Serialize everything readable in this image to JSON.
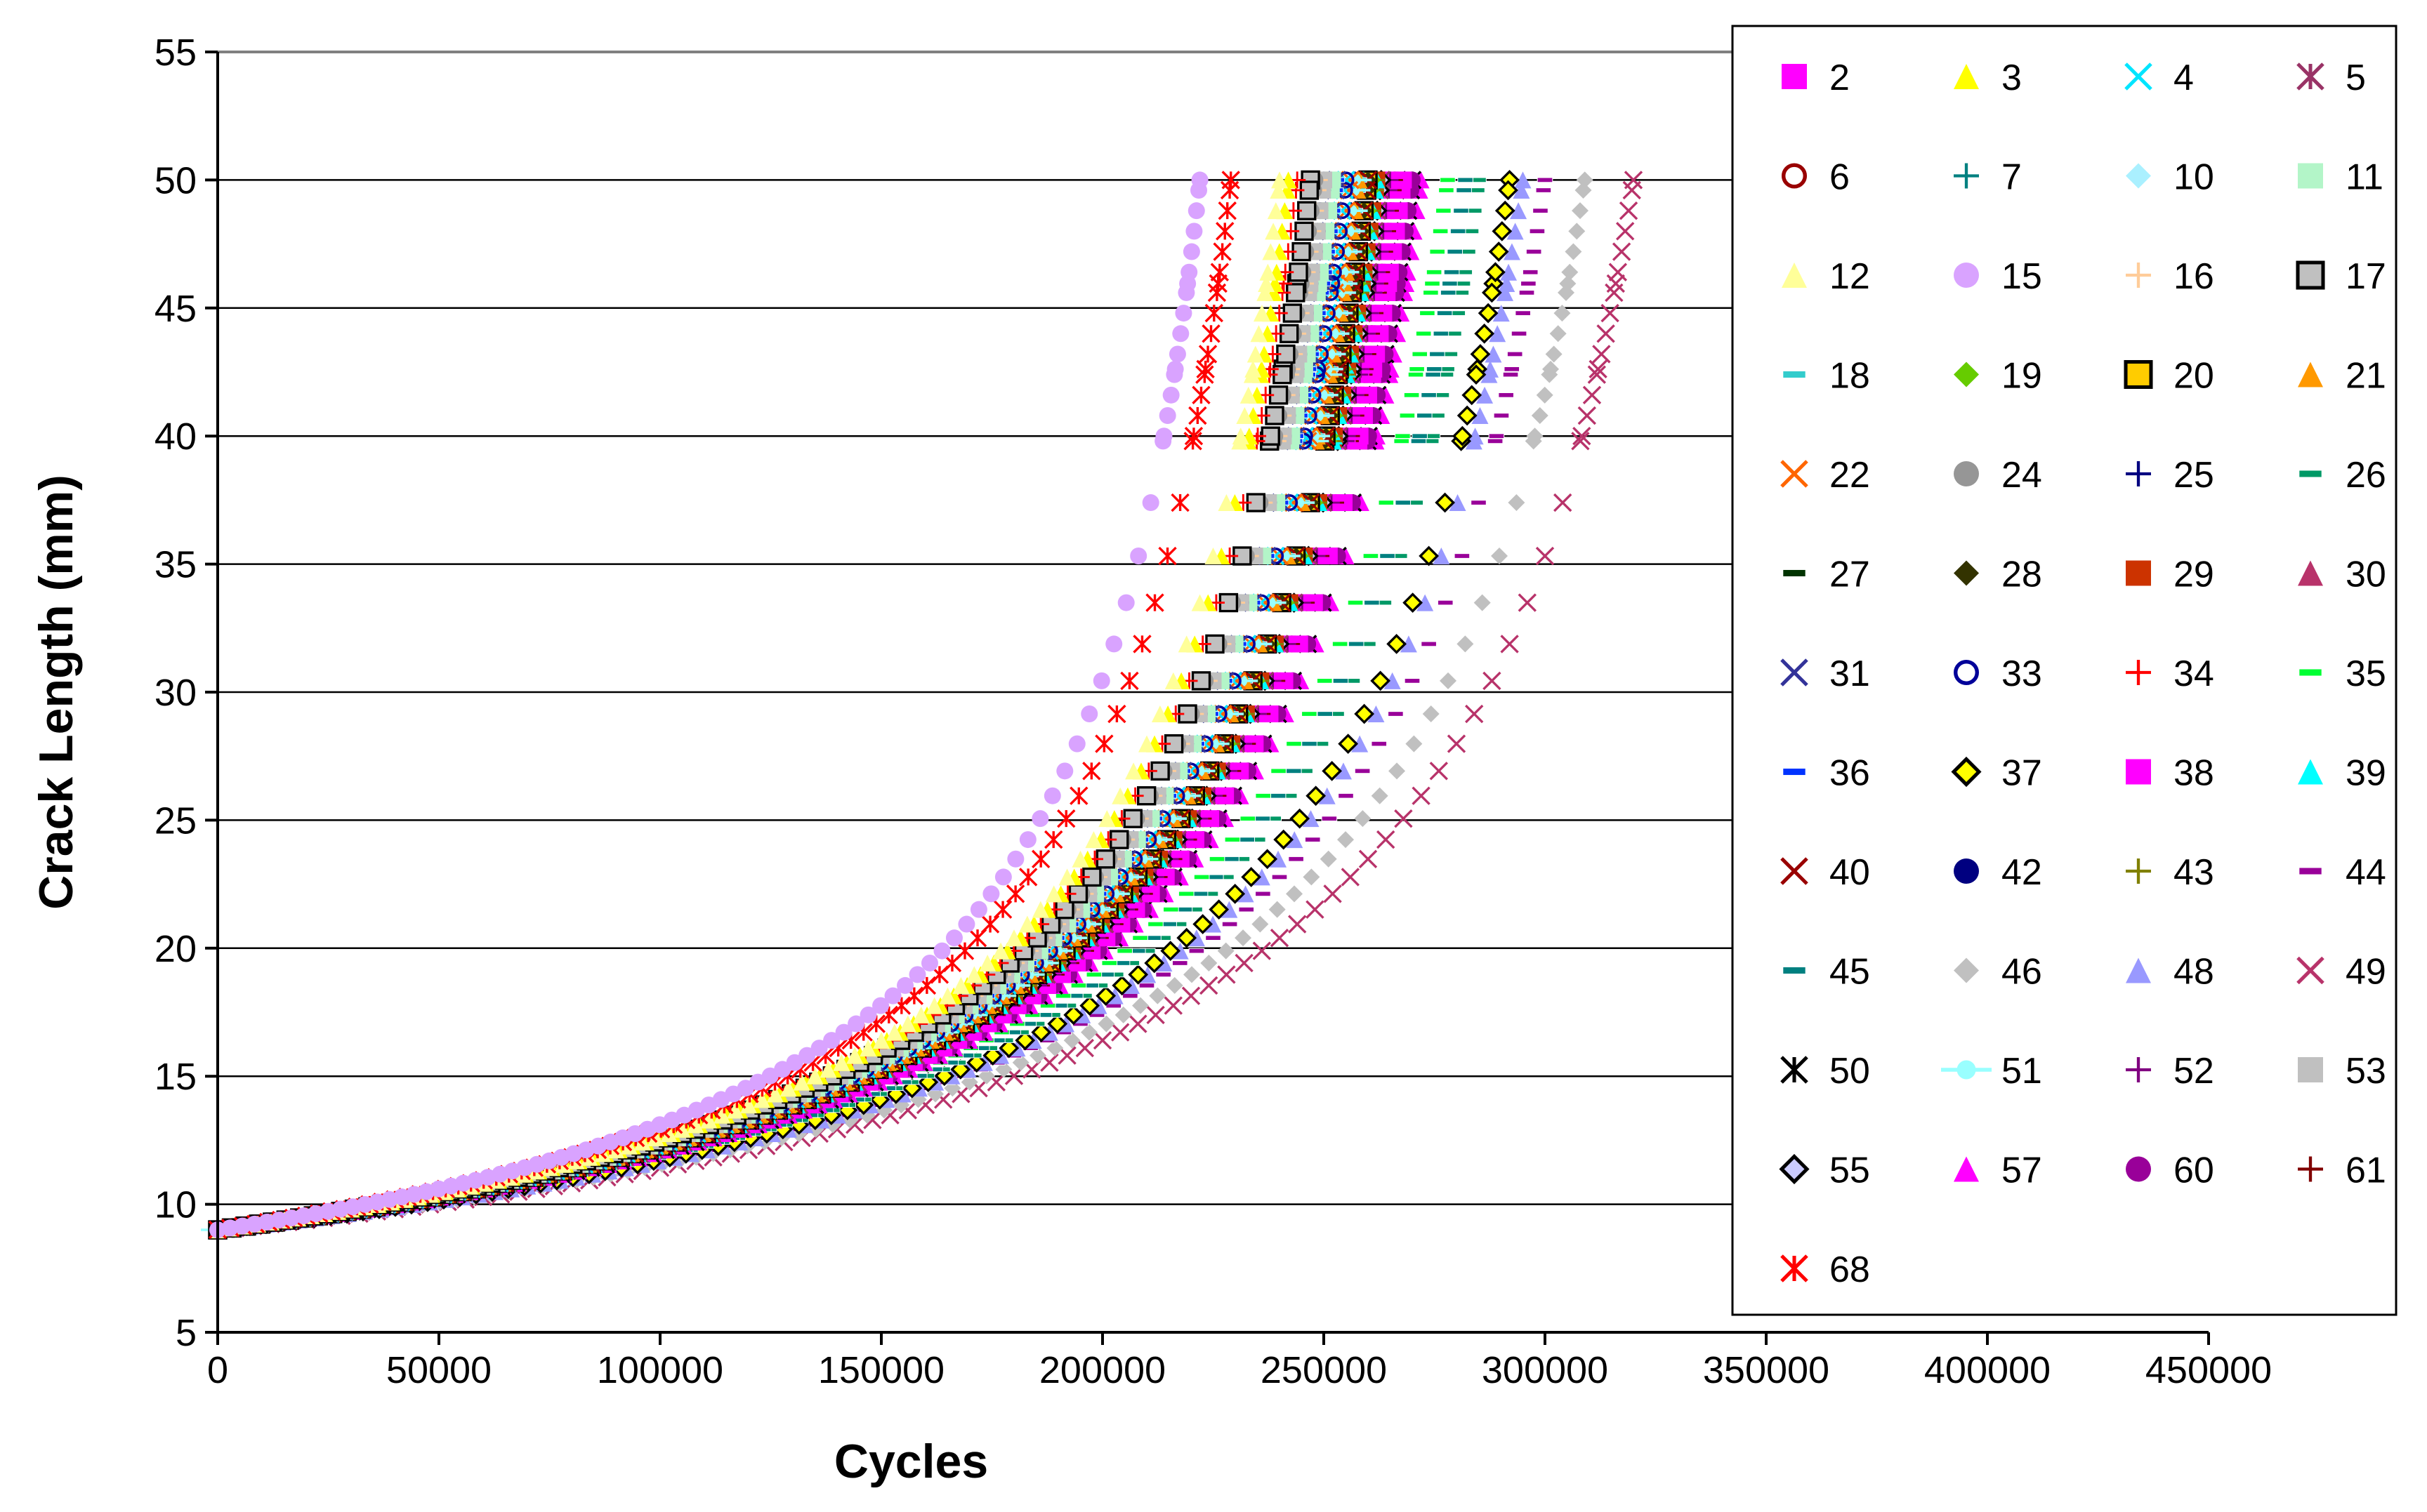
{
  "chart_data": {
    "type": "scatter",
    "title": "",
    "xlabel": "Cycles",
    "ylabel": "Crack Length (mm)",
    "xlim": [
      0,
      450000
    ],
    "ylim": [
      5,
      55
    ],
    "x_ticks": [
      0,
      50000,
      100000,
      150000,
      200000,
      250000,
      300000,
      350000,
      400000,
      450000
    ],
    "y_ticks": [
      5,
      10,
      15,
      20,
      25,
      30,
      35,
      40,
      45,
      50,
      55
    ],
    "grid": "horizontal",
    "legend_placement": "right",
    "series": [
      {
        "name": "2",
        "marker": "square",
        "color": "#ff00ff",
        "a_end": 50,
        "n_end": 265000
      },
      {
        "name": "3",
        "marker": "triangle",
        "color": "#ffff00",
        "a_end": 50,
        "n_end": 242000
      },
      {
        "name": "4",
        "marker": "x",
        "color": "#00e5ff",
        "a_end": 50,
        "n_end": 255000
      },
      {
        "name": "5",
        "marker": "star",
        "color": "#993366",
        "a_end": 50,
        "n_end": 263000
      },
      {
        "name": "6",
        "marker": "circle-open",
        "color": "#990000",
        "a_end": 50,
        "n_end": 258000
      },
      {
        "name": "7",
        "marker": "plus",
        "color": "#008080",
        "a_end": 50,
        "n_end": 259000
      },
      {
        "name": "10",
        "marker": "diamond",
        "color": "#aaf0ff",
        "a_end": 50,
        "n_end": 250000
      },
      {
        "name": "11",
        "marker": "square",
        "color": "#b3f5c8",
        "a_end": 50,
        "n_end": 252000
      },
      {
        "name": "12",
        "marker": "triangle",
        "color": "#ffff99",
        "a_end": 50,
        "n_end": 240000
      },
      {
        "name": "15",
        "marker": "circle",
        "color": "#d9a3ff",
        "a_end": 50,
        "n_end": 222000
      },
      {
        "name": "16",
        "marker": "plus",
        "color": "#ffcc99",
        "a_end": 50,
        "n_end": 249000
      },
      {
        "name": "17",
        "marker": "square-open-black",
        "color": "#c0c0c0",
        "a_end": 50,
        "n_end": 247000
      },
      {
        "name": "18",
        "marker": "dash",
        "color": "#33cccc",
        "a_end": 50,
        "n_end": 258000
      },
      {
        "name": "19",
        "marker": "diamond",
        "color": "#66cc00",
        "a_end": 50,
        "n_end": 261000
      },
      {
        "name": "20",
        "marker": "square-open-black",
        "color": "#ffcc00",
        "a_end": 50,
        "n_end": 260000
      },
      {
        "name": "21",
        "marker": "triangle",
        "color": "#ff9900",
        "a_end": 50,
        "n_end": 258000
      },
      {
        "name": "22",
        "marker": "x",
        "color": "#ff6600",
        "a_end": 50,
        "n_end": 256000
      },
      {
        "name": "24",
        "marker": "circle",
        "color": "#969696",
        "a_end": 50,
        "n_end": 248000
      },
      {
        "name": "25",
        "marker": "plus",
        "color": "#000080",
        "a_end": 50,
        "n_end": 257000
      },
      {
        "name": "26",
        "marker": "dash",
        "color": "#009966",
        "a_end": 50,
        "n_end": 285000
      },
      {
        "name": "27",
        "marker": "dash",
        "color": "#003300",
        "a_end": 50,
        "n_end": 262000
      },
      {
        "name": "28",
        "marker": "diamond",
        "color": "#333300",
        "a_end": 50,
        "n_end": 260000
      },
      {
        "name": "29",
        "marker": "square",
        "color": "#cc3300",
        "a_end": 50,
        "n_end": 262000
      },
      {
        "name": "30",
        "marker": "triangle",
        "color": "#b8336a",
        "a_end": 50,
        "n_end": 268000
      },
      {
        "name": "31",
        "marker": "x",
        "color": "#333399",
        "a_end": 50,
        "n_end": 253000
      },
      {
        "name": "33",
        "marker": "circle-open",
        "color": "#000099",
        "a_end": 50,
        "n_end": 255000
      },
      {
        "name": "34",
        "marker": "plus",
        "color": "#ff0000",
        "a_end": 50,
        "n_end": 244000
      },
      {
        "name": "35",
        "marker": "dash",
        "color": "#00ff33",
        "a_end": 50,
        "n_end": 278000
      },
      {
        "name": "36",
        "marker": "dash",
        "color": "#0033ff",
        "a_end": 50,
        "n_end": 253000
      },
      {
        "name": "37",
        "marker": "diamond-open-black",
        "color": "#ffff00",
        "a_end": 50,
        "n_end": 292000
      },
      {
        "name": "38",
        "marker": "square",
        "color": "#ff00ff",
        "a_end": 50,
        "n_end": 268000
      },
      {
        "name": "39",
        "marker": "triangle",
        "color": "#00ffff",
        "a_end": 50,
        "n_end": 262000
      },
      {
        "name": "40",
        "marker": "x",
        "color": "#990000",
        "a_end": 50,
        "n_end": 260000
      },
      {
        "name": "42",
        "marker": "circle",
        "color": "#000080",
        "a_end": 50,
        "n_end": 250000
      },
      {
        "name": "43",
        "marker": "plus",
        "color": "#808000",
        "a_end": 50,
        "n_end": 262000
      },
      {
        "name": "44",
        "marker": "dash",
        "color": "#990099",
        "a_end": 50,
        "n_end": 300000
      },
      {
        "name": "45",
        "marker": "dash",
        "color": "#008080",
        "a_end": 50,
        "n_end": 282000
      },
      {
        "name": "46",
        "marker": "diamond",
        "color": "#c0c0c0",
        "a_end": 50,
        "n_end": 309000
      },
      {
        "name": "48",
        "marker": "triangle",
        "color": "#9999ff",
        "a_end": 50,
        "n_end": 295000
      },
      {
        "name": "49",
        "marker": "x",
        "color": "#b8336a",
        "a_end": 50,
        "n_end": 320000
      },
      {
        "name": "50",
        "marker": "star",
        "color": "#000000",
        "a_end": 50,
        "n_end": 270000
      },
      {
        "name": "51",
        "marker": "circle-line",
        "color": "#99ffff",
        "a_end": 50,
        "n_end": 257000
      },
      {
        "name": "52",
        "marker": "plus",
        "color": "#800080",
        "a_end": 50,
        "n_end": 265000
      },
      {
        "name": "53",
        "marker": "square",
        "color": "#c0c0c0",
        "a_end": 50,
        "n_end": 250000
      },
      {
        "name": "55",
        "marker": "diamond-open-black",
        "color": "#ccccff",
        "a_end": 50,
        "n_end": 263000
      },
      {
        "name": "57",
        "marker": "triangle",
        "color": "#ff00ff",
        "a_end": 50,
        "n_end": 272000
      },
      {
        "name": "60",
        "marker": "circle",
        "color": "#990099",
        "a_end": 50,
        "n_end": 270000
      },
      {
        "name": "61",
        "marker": "plus",
        "color": "#800000",
        "a_end": 50,
        "n_end": 266000
      },
      {
        "name": "68",
        "marker": "star",
        "color": "#ff0000",
        "a_end": 50,
        "n_end": 229000
      }
    ]
  }
}
